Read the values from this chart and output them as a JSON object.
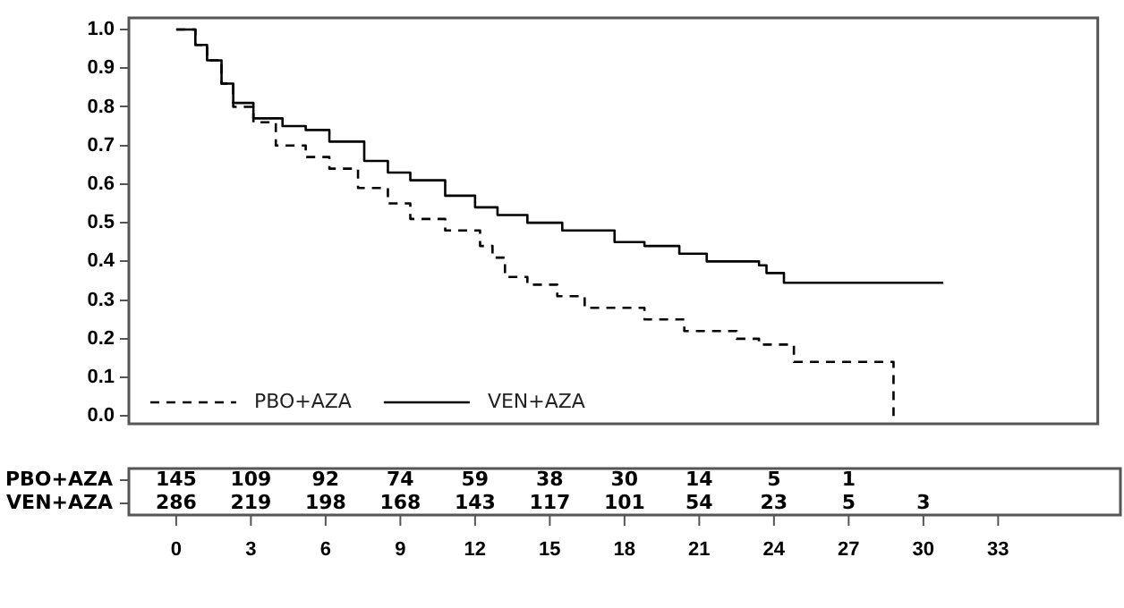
{
  "chart_data": [
    {
      "type": "step",
      "xlim": [
        -1.9,
        37
      ],
      "ylim": [
        -0.02,
        1.03
      ],
      "xticks": [
        0,
        3,
        6,
        9,
        12,
        15,
        18,
        21,
        24,
        27,
        30,
        33
      ],
      "yticks": [
        {
          "value": 0,
          "label": "0.0"
        },
        0.1,
        0.2,
        0.3,
        0.4,
        0.5,
        0.6,
        0.7,
        0.8,
        0.9,
        {
          "value": 1,
          "label": "1.0"
        }
      ],
      "legend": "bottom left",
      "grid": false,
      "series": [
        {
          "name": "PBO+AZA",
          "color": "#000000",
          "line_style": "dashed",
          "x": [
            0,
            0.77,
            1.24,
            1.82,
            2.29,
            3.1,
            4.0,
            5.2,
            6.15,
            7.3,
            8.5,
            9.4,
            10.8,
            12.2,
            12.7,
            13.2,
            14.1,
            15.3,
            16.4,
            18.8,
            20.4,
            22.5,
            23.4,
            24.8,
            28.8,
            28.8
          ],
          "values": [
            1.0,
            0.96,
            0.92,
            0.86,
            0.8,
            0.76,
            0.7,
            0.67,
            0.64,
            0.59,
            0.55,
            0.51,
            0.48,
            0.44,
            0.41,
            0.36,
            0.34,
            0.31,
            0.28,
            0.25,
            0.22,
            0.2,
            0.185,
            0.14,
            0.14,
            0
          ]
        },
        {
          "name": "VEN+AZA",
          "color": "#000000",
          "line_style": "solid",
          "x": [
            0,
            0.77,
            1.24,
            1.82,
            2.29,
            3.1,
            4.27,
            5.2,
            6.15,
            7.55,
            8.5,
            9.4,
            10.8,
            12.0,
            12.9,
            14.1,
            15.5,
            17.6,
            18.8,
            20.2,
            21.3,
            23.4,
            23.7,
            24.4,
            30.8
          ],
          "values": [
            1.0,
            0.96,
            0.92,
            0.86,
            0.81,
            0.77,
            0.75,
            0.74,
            0.71,
            0.66,
            0.63,
            0.61,
            0.57,
            0.54,
            0.52,
            0.5,
            0.48,
            0.45,
            0.44,
            0.42,
            0.4,
            0.39,
            0.37,
            0.345,
            0.345
          ]
        }
      ]
    },
    {
      "type": "other",
      "y_categories": [
        "PBO+AZA",
        "VEN+AZA"
      ],
      "annotations": [
        {
          "text": "145",
          "y": "PBO+AZA"
        },
        {
          "text": "109",
          "y": "PBO+AZA"
        },
        {
          "text": "92",
          "y": "PBO+AZA"
        },
        {
          "text": "74",
          "y": "PBO+AZA"
        },
        {
          "text": "59",
          "y": "PBO+AZA"
        },
        {
          "text": "38",
          "y": "PBO+AZA"
        },
        {
          "text": "30",
          "y": "PBO+AZA"
        },
        {
          "text": "14",
          "y": "PBO+AZA"
        },
        {
          "text": "5",
          "y": "PBO+AZA"
        },
        {
          "text": "1",
          "y": "PBO+AZA"
        },
        {
          "text": "286",
          "y": "VEN+AZA"
        },
        {
          "text": "219",
          "y": "VEN+AZA"
        },
        {
          "text": "198",
          "y": "VEN+AZA"
        },
        {
          "text": "168",
          "y": "VEN+AZA"
        },
        {
          "text": "143",
          "y": "VEN+AZA"
        },
        {
          "text": "117",
          "y": "VEN+AZA"
        },
        {
          "text": "101",
          "y": "VEN+AZA"
        },
        {
          "text": "54",
          "y": "VEN+AZA"
        },
        {
          "text": "23",
          "y": "VEN+AZA"
        },
        {
          "text": "5",
          "y": "VEN+AZA"
        },
        {
          "text": "3",
          "y": "VEN+AZA"
        }
      ]
    }
  ]
}
